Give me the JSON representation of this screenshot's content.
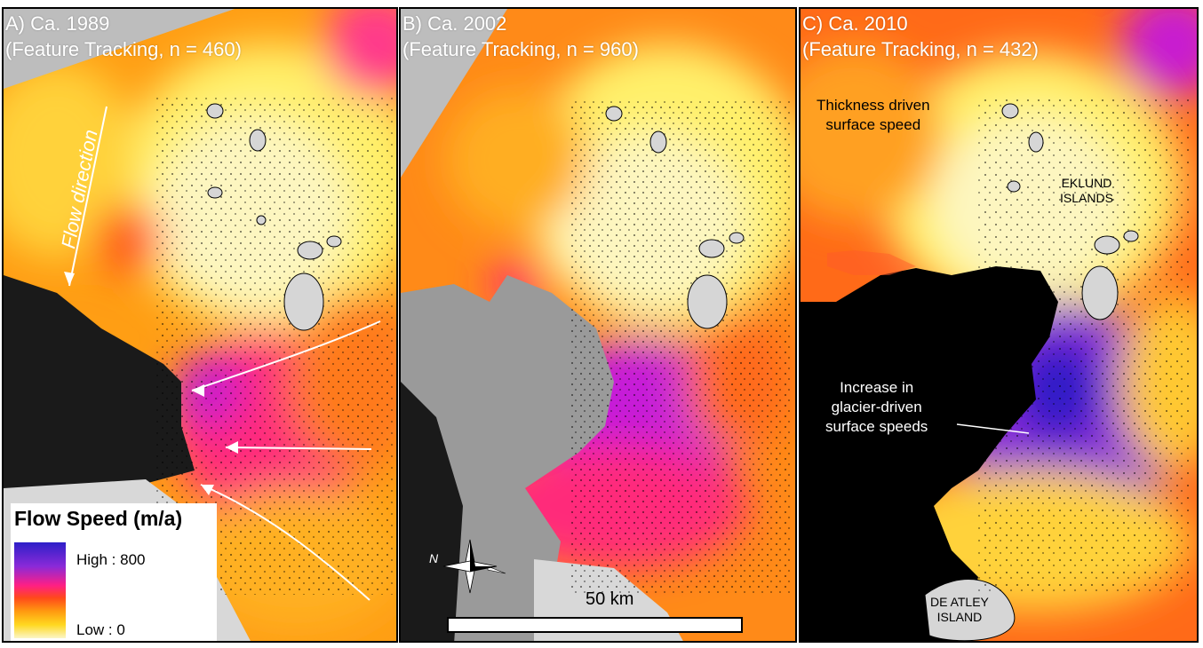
{
  "panels": [
    {
      "title_line1": "A) Ca. 1989",
      "title_line2": "(Feature Tracking, n = 460)"
    },
    {
      "title_line1": "B) Ca. 2002",
      "title_line2": "(Feature Tracking, n = 960)"
    },
    {
      "title_line1": "C) Ca. 2010",
      "title_line2": "(Feature Tracking, n = 432)"
    }
  ],
  "annotations": {
    "flow_direction": "Flow direction",
    "thickness_line1": "Thickness driven",
    "thickness_line2": "surface speed",
    "increase_line1": "Increase in",
    "increase_line2": "glacier-driven",
    "increase_line3": "surface speeds",
    "eklund_line1": "EKLUND",
    "eklund_line2": "ISLANDS",
    "deatley_line1": "DE ATLEY",
    "deatley_line2": "ISLAND"
  },
  "legend": {
    "title": "Flow Speed (m/a)",
    "high": "High : 800",
    "low": "Low : 0",
    "colors": [
      "#2d1fc8",
      "#ff1f84",
      "#ff9a10",
      "#fbf6c8"
    ]
  },
  "scale_bar": {
    "label": "50 km"
  },
  "north_arrow": {
    "label": "N",
    "icon": "compass-rose-icon"
  }
}
